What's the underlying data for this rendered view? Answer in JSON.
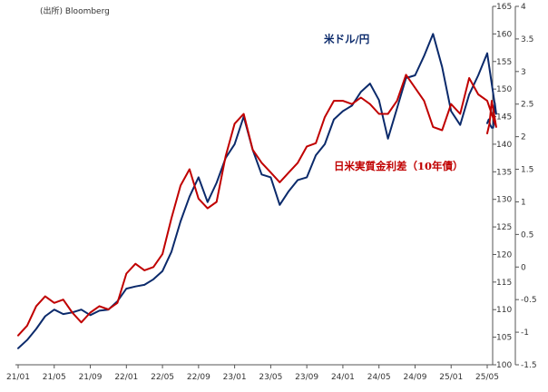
{
  "chart_data": {
    "type": "line",
    "source": "(出所) Bloomberg",
    "x_ticks": [
      "21/01",
      "21/05",
      "21/09",
      "22/01",
      "22/05",
      "22/09",
      "23/01",
      "23/05",
      "23/09",
      "24/01",
      "24/05",
      "24/09",
      "25/01",
      "25/05"
    ],
    "left_axis": {
      "ticks": [
        "100",
        "105",
        "110",
        "115",
        "120",
        "125",
        "130",
        "135",
        "140",
        "145",
        "150",
        "155",
        "160",
        "165"
      ],
      "range": [
        100,
        165
      ]
    },
    "right_axis": {
      "ticks": [
        "-1.5",
        "-1",
        "-0.5",
        "0",
        "0.5",
        "1",
        "1.5",
        "2",
        "2.5",
        "3",
        "3.5",
        "4"
      ],
      "range": [
        -1.5,
        4
      ]
    },
    "grid": false,
    "series": [
      {
        "name": "米ドル/円",
        "axis": "left",
        "color": "#0b2a6b",
        "t": [
          0,
          1,
          2,
          3,
          4,
          5,
          6,
          7,
          8,
          9,
          10,
          11,
          12,
          13,
          14,
          15,
          16,
          17,
          18,
          19,
          20,
          21,
          22,
          23,
          24,
          25,
          26,
          27,
          28,
          29,
          30,
          31,
          32,
          33,
          34,
          35,
          36,
          37,
          38,
          39,
          40,
          41,
          42,
          43,
          44,
          45,
          46,
          47,
          48,
          49,
          50,
          51,
          52,
          53
        ],
        "values": [
          103.0,
          104.5,
          106.5,
          108.8,
          110.0,
          109.2,
          109.5,
          110.0,
          109.0,
          109.8,
          110.0,
          111.5,
          113.8,
          114.2,
          114.5,
          115.5,
          117.0,
          120.5,
          126.0,
          130.5,
          134.0,
          129.5,
          133.0,
          137.5,
          140.0,
          145.0,
          139.0,
          134.5,
          134.0,
          129.0,
          131.5,
          133.5,
          134.0,
          138.0,
          140.0,
          144.5,
          146.0,
          147.0,
          149.5,
          151.0,
          148.0,
          141.0,
          146.5,
          152.0,
          152.5,
          156.0,
          160.0,
          154.0,
          146.0,
          143.5,
          149.0,
          152.5,
          156.5,
          145.5
        ],
        "end": [
          147.5,
          143.0,
          143.0,
          143.5,
          144.5,
          143.8
        ]
      },
      {
        "name": "日米実質金利差（10年債）",
        "axis": "right",
        "color": "#c00000",
        "t": [
          0,
          1,
          2,
          3,
          4,
          5,
          6,
          7,
          8,
          9,
          10,
          11,
          12,
          13,
          14,
          15,
          16,
          17,
          18,
          19,
          20,
          21,
          22,
          23,
          24,
          25,
          26,
          27,
          28,
          29,
          30,
          31,
          32,
          33,
          34,
          35,
          36,
          37,
          38,
          39,
          40,
          41,
          42,
          43,
          44,
          45,
          46,
          47,
          48,
          49,
          50,
          51,
          52,
          53
        ],
        "values": [
          -1.05,
          -0.9,
          -0.6,
          -0.45,
          -0.55,
          -0.5,
          -0.7,
          -0.85,
          -0.7,
          -0.6,
          -0.65,
          -0.55,
          -0.1,
          0.05,
          -0.05,
          0.0,
          0.2,
          0.75,
          1.25,
          1.5,
          1.05,
          0.9,
          1.0,
          1.7,
          2.2,
          2.35,
          1.8,
          1.6,
          1.45,
          1.3,
          1.45,
          1.6,
          1.85,
          1.9,
          2.3,
          2.55,
          2.55,
          2.5,
          2.6,
          2.5,
          2.35,
          2.35,
          2.55,
          2.95,
          2.75,
          2.55,
          2.15,
          2.1,
          2.5,
          2.35,
          2.9,
          2.65,
          2.55,
          2.15
        ],
        "end": [
          2.35,
          2.55,
          2.2,
          2.05
        ]
      }
    ]
  }
}
